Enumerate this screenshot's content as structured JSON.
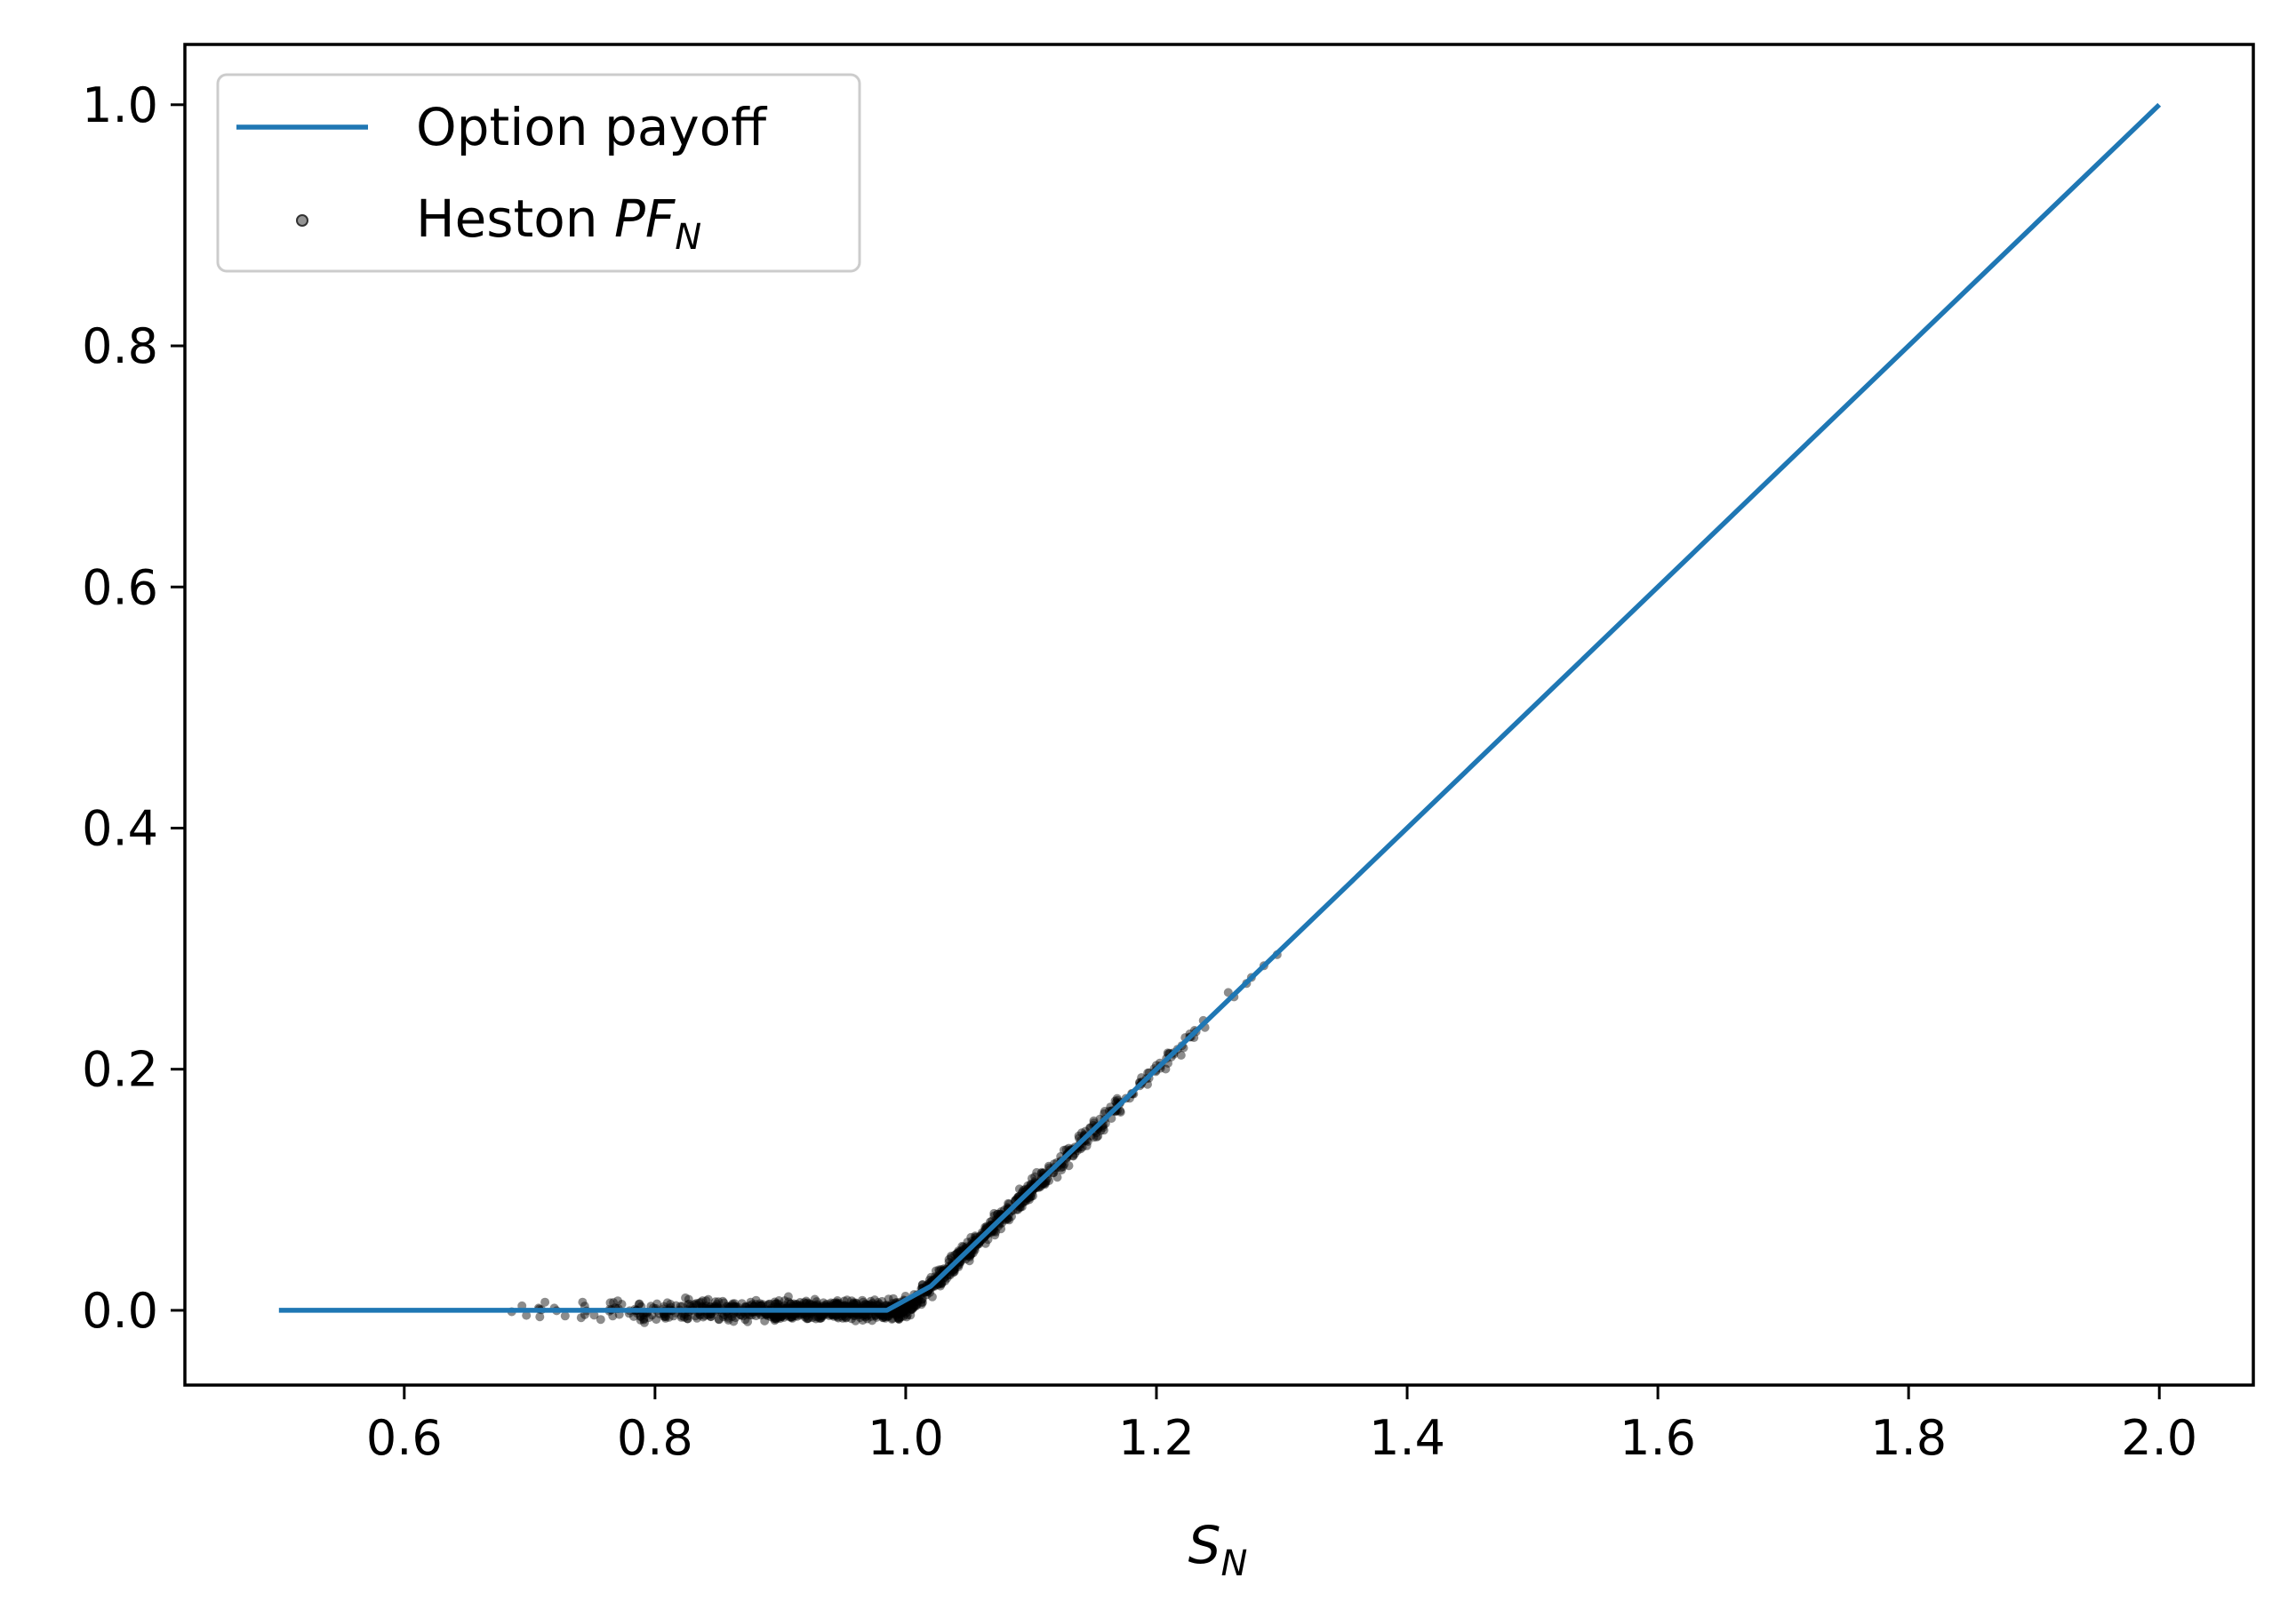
{
  "chart_data": {
    "type": "line",
    "xlabel": "S",
    "xlabel_sub": "N",
    "ylabel": "",
    "xlim": [
      0.425,
      2.075
    ],
    "ylim": [
      -0.062,
      1.05
    ],
    "xticks": [
      "0.6",
      "0.8",
      "1.0",
      "1.2",
      "1.4",
      "1.6",
      "1.8",
      "2.0"
    ],
    "yticks": [
      "0.0",
      "0.2",
      "0.4",
      "0.6",
      "0.8",
      "1.0"
    ],
    "grid": false,
    "legend_position": "top-left",
    "series": [
      {
        "name": "Option payoff",
        "kind": "line",
        "color": "#1f77b4",
        "x": [
          0.5,
          0.985,
          1.02,
          2.0
        ],
        "y": [
          0.0,
          0.0,
          0.02,
          1.0
        ]
      },
      {
        "name": "Heston PF_N",
        "name_prefix": "Heston ",
        "name_math": "PF",
        "name_sub": "N",
        "kind": "scatter",
        "color": "#000000",
        "x_range": [
          0.68,
          1.43
        ],
        "approx_relation": "max(S_N - 1, 0) with small noise"
      }
    ]
  }
}
